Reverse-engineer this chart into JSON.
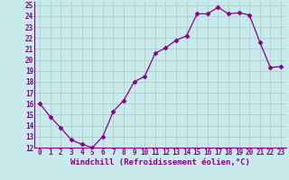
{
  "hours": [
    0,
    1,
    2,
    3,
    4,
    5,
    6,
    7,
    8,
    9,
    10,
    11,
    12,
    13,
    14,
    15,
    16,
    17,
    18,
    19,
    20,
    21,
    22,
    23
  ],
  "values": [
    16,
    14.8,
    13.8,
    12.7,
    12.3,
    12.0,
    13.0,
    15.3,
    16.3,
    18.0,
    18.5,
    20.6,
    21.1,
    21.8,
    22.2,
    24.2,
    24.2,
    24.8,
    24.2,
    24.3,
    24.1,
    21.6,
    19.3,
    19.4
  ],
  "ylim": [
    12,
    25
  ],
  "xlim": [
    -0.5,
    23.5
  ],
  "yticks": [
    12,
    13,
    14,
    15,
    16,
    17,
    18,
    19,
    20,
    21,
    22,
    23,
    24,
    25
  ],
  "xticks": [
    0,
    1,
    2,
    3,
    4,
    5,
    6,
    7,
    8,
    9,
    10,
    11,
    12,
    13,
    14,
    15,
    16,
    17,
    18,
    19,
    20,
    21,
    22,
    23
  ],
  "xlabel": "Windchill (Refroidissement éolien,°C)",
  "line_color": "#880088",
  "marker": "D",
  "marker_size": 2.5,
  "bg_color": "#c8eaea",
  "grid_color": "#a8c8c8",
  "tick_fontsize": 5.5,
  "label_fontsize": 6.5
}
